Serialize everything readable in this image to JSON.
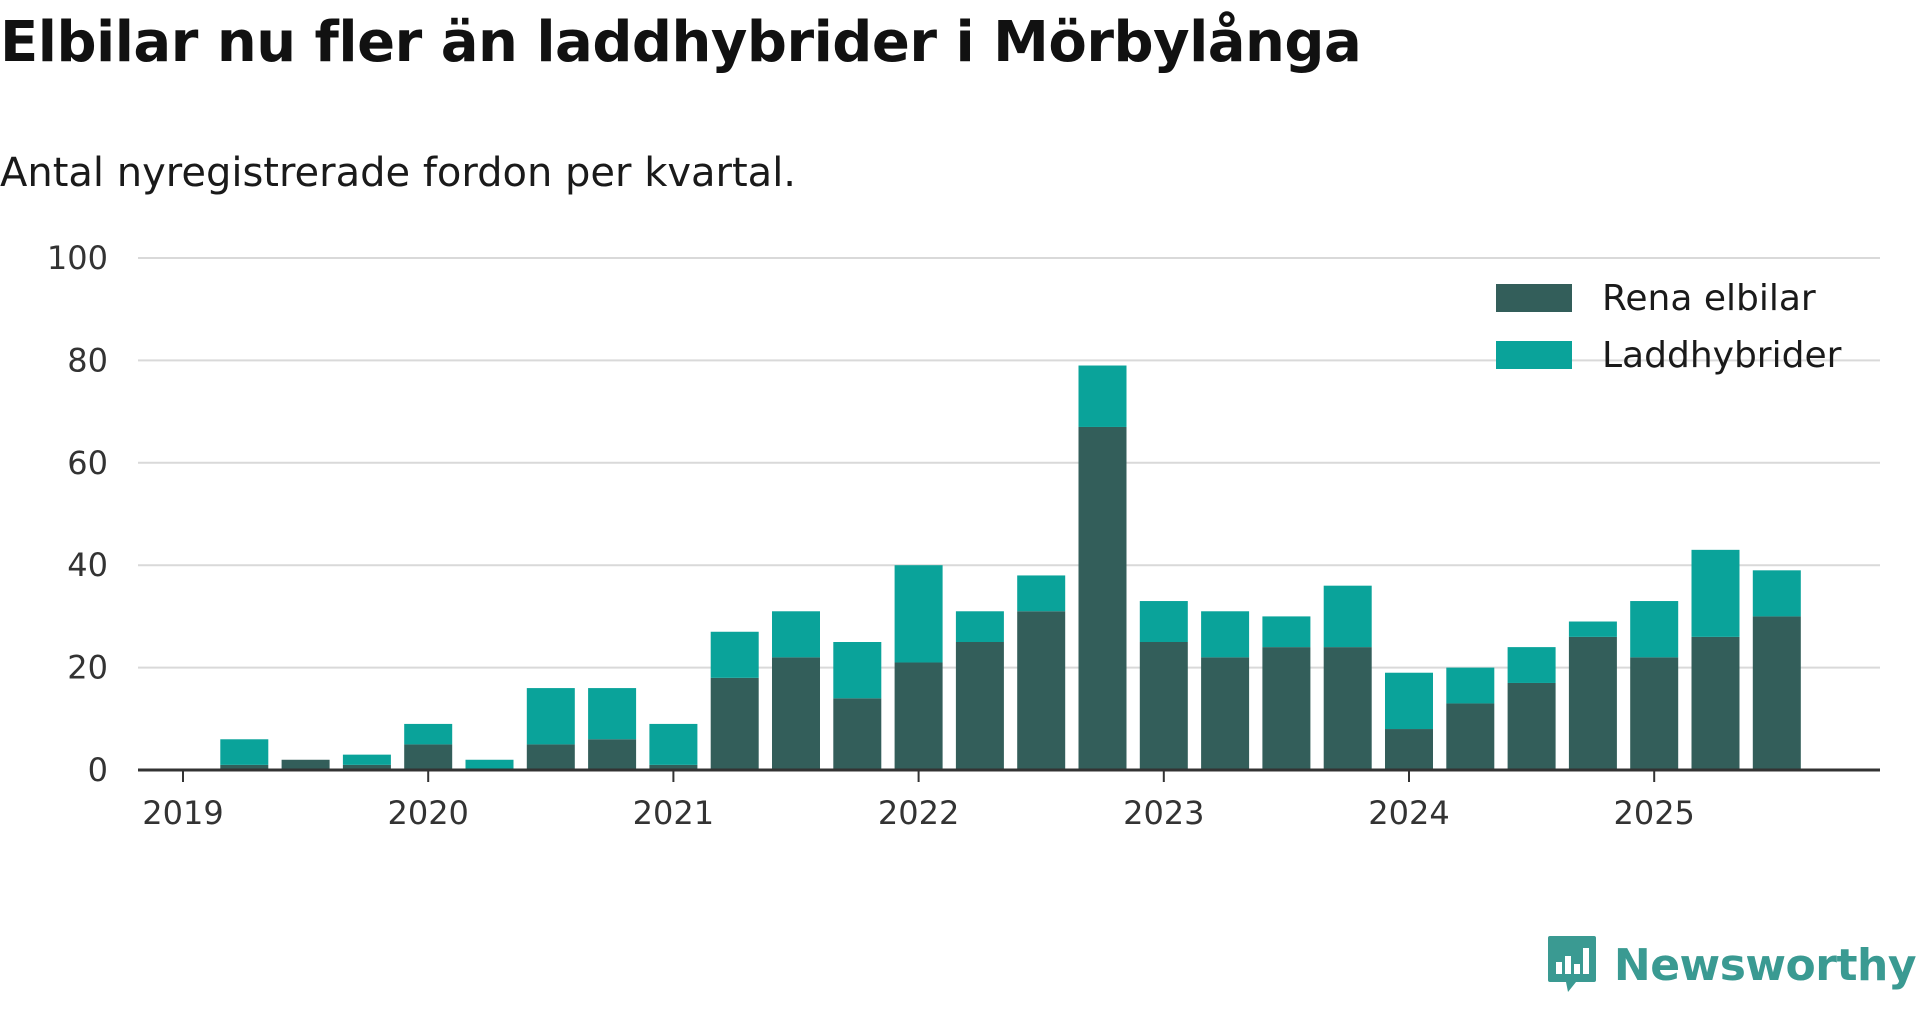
{
  "header": {
    "title": "Elbilar nu fler än laddhybrider i Mörbylånga",
    "subtitle": "Antal nyregistrerade fordon per kvartal."
  },
  "brand": {
    "name": "Newsworthy",
    "icon": "newsworthy-logo-icon",
    "color": "#3a9a92"
  },
  "colors": {
    "rena_elbilar": "#335e5a",
    "laddhybrider": "#0aa39a",
    "grid": "#d9d9d9",
    "axis": "#333333"
  },
  "chart_data": {
    "type": "bar",
    "stacked": true,
    "title": "Elbilar nu fler än laddhybrider i Mörbylånga",
    "subtitle": "Antal nyregistrerade fordon per kvartal.",
    "xlabel": "",
    "ylabel": "",
    "ylim": [
      0,
      100
    ],
    "yticks": [
      0,
      20,
      40,
      60,
      80,
      100
    ],
    "xtick_labels": [
      "2019",
      "2020",
      "2021",
      "2022",
      "2023",
      "2024",
      "2025"
    ],
    "legend_position": "top-right",
    "grid": true,
    "categories": [
      "2019 Q1",
      "2019 Q2",
      "2019 Q3",
      "2019 Q4",
      "2020 Q1",
      "2020 Q2",
      "2020 Q3",
      "2020 Q4",
      "2021 Q1",
      "2021 Q2",
      "2021 Q3",
      "2021 Q4",
      "2022 Q1",
      "2022 Q2",
      "2022 Q3",
      "2022 Q4",
      "2023 Q1",
      "2023 Q2",
      "2023 Q3",
      "2023 Q4",
      "2024 Q1",
      "2024 Q2",
      "2024 Q3",
      "2024 Q4",
      "2025 Q1",
      "2025 Q2",
      "2025 Q3"
    ],
    "series": [
      {
        "name": "Rena elbilar",
        "values": [
          0,
          1,
          2,
          1,
          5,
          0,
          5,
          6,
          1,
          18,
          22,
          14,
          21,
          25,
          31,
          67,
          25,
          22,
          24,
          24,
          8,
          13,
          17,
          26,
          22,
          26,
          30
        ]
      },
      {
        "name": "Laddhybrider",
        "values": [
          0,
          5,
          0,
          2,
          4,
          2,
          11,
          10,
          8,
          9,
          9,
          11,
          19,
          6,
          7,
          12,
          8,
          9,
          6,
          12,
          11,
          7,
          7,
          3,
          11,
          17,
          9
        ]
      }
    ]
  }
}
